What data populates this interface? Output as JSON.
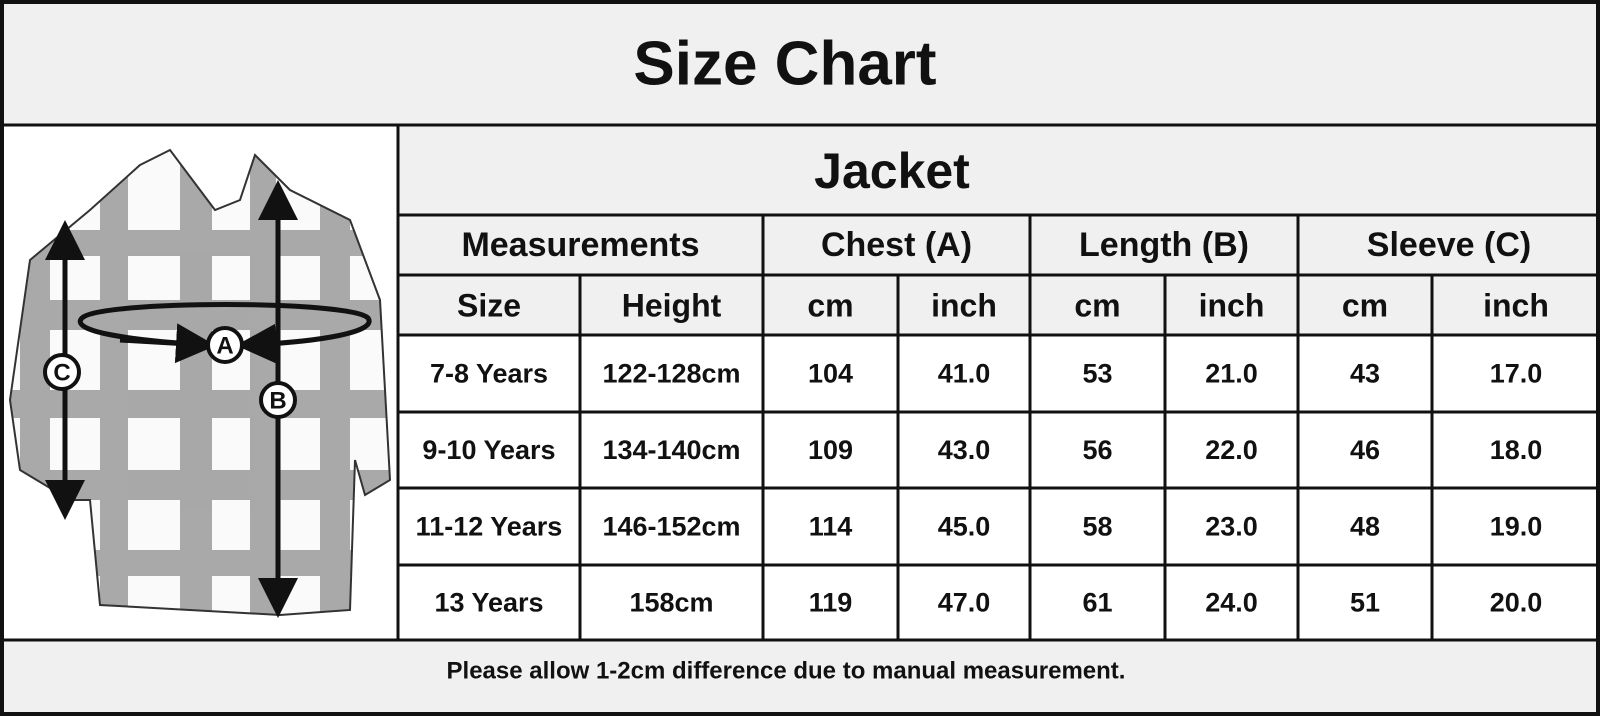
{
  "title": "Size Chart",
  "diagram": {
    "labels": [
      "A",
      "B",
      "C"
    ]
  },
  "table": {
    "caption": "Jacket",
    "group_headers": [
      "Measurements",
      "Chest (A)",
      "Length (B)",
      "Sleeve (C)"
    ],
    "sub_headers": [
      "Size",
      "Height",
      "cm",
      "inch",
      "cm",
      "inch",
      "cm",
      "inch"
    ],
    "rows": [
      [
        "7-8 Years",
        "122-128cm",
        "104",
        "41.0",
        "53",
        "21.0",
        "43",
        "17.0"
      ],
      [
        "9-10 Years",
        "134-140cm",
        "109",
        "43.0",
        "56",
        "22.0",
        "46",
        "18.0"
      ],
      [
        "11-12 Years",
        "146-152cm",
        "114",
        "45.0",
        "58",
        "23.0",
        "48",
        "19.0"
      ],
      [
        "13 Years",
        "158cm",
        "119",
        "47.0",
        "61",
        "24.0",
        "51",
        "20.0"
      ]
    ]
  },
  "footnote": "Please allow 1-2cm difference due to manual measurement."
}
